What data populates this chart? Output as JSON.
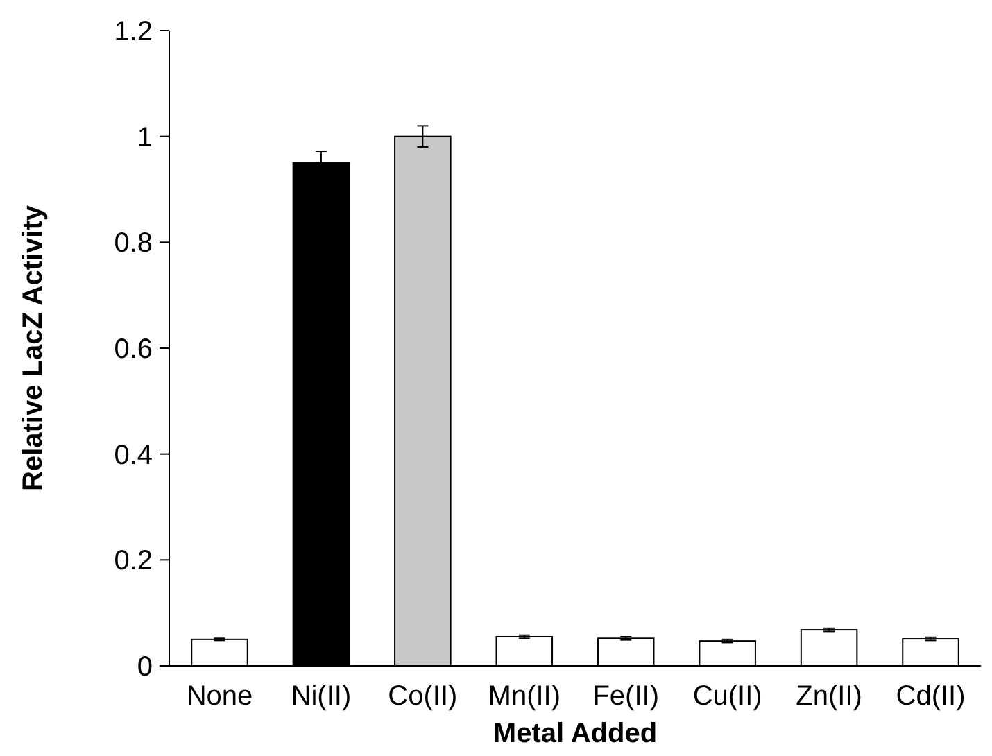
{
  "chart_data": {
    "type": "bar",
    "xlabel": "Metal Added",
    "ylabel": "Relative LacZ Activity",
    "categories": [
      "None",
      "Ni(II)",
      "Co(II)",
      "Mn(II)",
      "Fe(II)",
      "Cu(II)",
      "Zn(II)",
      "Cd(II)"
    ],
    "values": [
      0.05,
      0.95,
      1.0,
      0.055,
      0.052,
      0.047,
      0.068,
      0.051
    ],
    "colors": [
      "#ffffff",
      "#000000",
      "#c8c8c8",
      "#ffffff",
      "#ffffff",
      "#ffffff",
      "#ffffff",
      "#ffffff"
    ],
    "errors": [
      0.002,
      0.022,
      0.02,
      0.003,
      0.003,
      0.003,
      0.003,
      0.003
    ],
    "ylim": [
      0,
      1.2
    ],
    "yticks": [
      0,
      0.2,
      0.4,
      0.6,
      0.8,
      1,
      1.2
    ],
    "grid": false
  }
}
